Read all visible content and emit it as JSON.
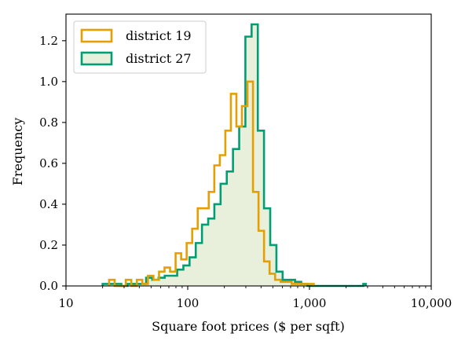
{
  "chart_data": {
    "type": "histogram",
    "xlabel": "Square foot prices ($ per sqft)",
    "ylabel": "Frequency",
    "xscale": "log",
    "xlim": [
      10,
      10000
    ],
    "ylim": [
      0,
      1.33
    ],
    "xticks": [
      {
        "value": 10,
        "label": "10"
      },
      {
        "value": 100,
        "label": "100"
      },
      {
        "value": 1000,
        "label": "1,000"
      },
      {
        "value": 10000,
        "label": "10,000"
      }
    ],
    "yticks": [
      {
        "value": 0.0,
        "label": "0.0"
      },
      {
        "value": 0.2,
        "label": "0.2"
      },
      {
        "value": 0.4,
        "label": "0.4"
      },
      {
        "value": 0.6,
        "label": "0.6"
      },
      {
        "value": 0.8,
        "label": "0.8"
      },
      {
        "value": 1.0,
        "label": "1.0"
      },
      {
        "value": 1.2,
        "label": "1.2"
      }
    ],
    "legend_position": "top-left",
    "series": [
      {
        "name": "district 19",
        "color": "#E69F00",
        "fill": "none",
        "bin_edges": [
          22.6,
          25.1,
          27.9,
          31.0,
          34.4,
          38.2,
          42.4,
          47.1,
          52.3,
          58.1,
          64.5,
          71.6,
          79.5,
          88.3,
          98.0,
          108.8,
          120.8,
          134.1,
          148.9,
          165.3,
          183.5,
          203.7,
          226.2,
          251.1,
          278.8,
          309.5,
          343.6,
          381.5,
          423.5,
          470.2,
          522.0,
          579.5,
          643.4,
          714.3,
          793.0,
          880.3,
          977.3,
          1085.0
        ],
        "values": [
          0.03,
          0.0,
          0.0,
          0.03,
          0.0,
          0.03,
          0.01,
          0.05,
          0.03,
          0.07,
          0.09,
          0.07,
          0.16,
          0.13,
          0.21,
          0.28,
          0.38,
          0.38,
          0.46,
          0.59,
          0.64,
          0.76,
          0.94,
          0.78,
          0.88,
          1.0,
          0.46,
          0.27,
          0.12,
          0.06,
          0.03,
          0.02,
          0.02,
          0.01,
          0.01,
          0.01,
          0.01
        ]
      },
      {
        "name": "district 27",
        "color": "#009E73",
        "fill": "#e8f0dc",
        "bin_edges": [
          20.0,
          22.5,
          25.3,
          28.5,
          32.0,
          36.0,
          40.5,
          45.5,
          51.2,
          57.6,
          64.7,
          72.8,
          81.9,
          92.1,
          103.5,
          116.4,
          130.9,
          147.2,
          165.5,
          186.1,
          209.3,
          235.4,
          264.7,
          297.6,
          334.7,
          376.4,
          423.2,
          475.9,
          535.2,
          601.8,
          676.7,
          761.0,
          855.7,
          962.2,
          1082.0,
          1216.8,
          1368.3,
          1538.6,
          1730.2,
          1945.6,
          2187.8,
          2460.2,
          2766.6,
          2900.0
        ],
        "values": [
          0.01,
          0.01,
          0.01,
          0.0,
          0.01,
          0.01,
          0.01,
          0.04,
          0.03,
          0.04,
          0.05,
          0.05,
          0.08,
          0.1,
          0.14,
          0.21,
          0.3,
          0.33,
          0.4,
          0.5,
          0.56,
          0.67,
          0.78,
          1.22,
          1.28,
          0.76,
          0.38,
          0.2,
          0.07,
          0.03,
          0.03,
          0.02,
          0.01,
          0.0,
          0.0,
          0.0,
          0.0,
          0.0,
          0.0,
          0.0,
          0.0,
          0.0,
          0.01
        ]
      }
    ]
  }
}
